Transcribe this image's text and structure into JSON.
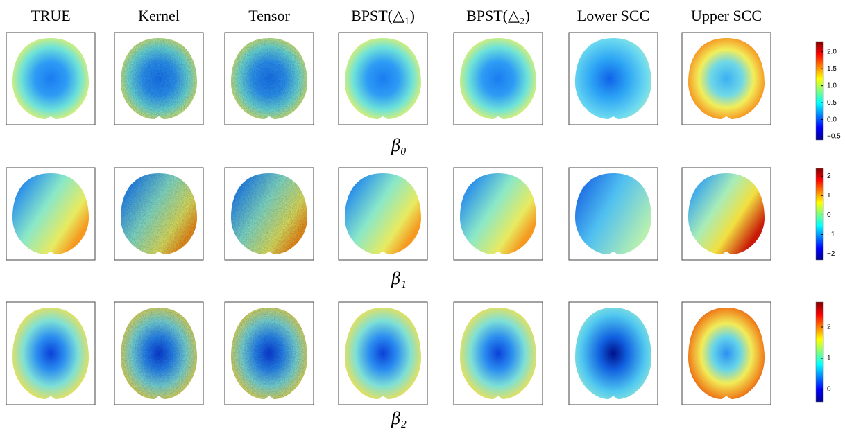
{
  "columns": [
    "TRUE",
    "Kernel",
    "Tensor",
    "BPST(△₁)",
    "BPST(△₂)",
    "Lower SCC",
    "Upper SCC"
  ],
  "rows": [
    {
      "label": "β₀",
      "colorbar": {
        "min": -0.6,
        "max": 2.3,
        "ticks": [
          {
            "value": 2,
            "label": "2.0"
          },
          {
            "value": 1.5,
            "label": "1.5"
          },
          {
            "value": 1,
            "label": "1.0"
          },
          {
            "value": 0.5,
            "label": "0.5"
          },
          {
            "value": 0,
            "label": "0.0"
          },
          {
            "value": -0.5,
            "label": "−0.5"
          }
        ]
      }
    },
    {
      "label": "β₁",
      "colorbar": {
        "min": -2.3,
        "max": 2.4,
        "ticks": [
          {
            "value": 2,
            "label": "2"
          },
          {
            "value": 1,
            "label": "1"
          },
          {
            "value": 0,
            "label": "0"
          },
          {
            "value": -1,
            "label": "−1"
          },
          {
            "value": -2,
            "label": "−2"
          }
        ]
      }
    },
    {
      "label": "β₂",
      "colorbar": {
        "min": -0.4,
        "max": 2.8,
        "ticks": [
          {
            "value": 2,
            "label": "2"
          },
          {
            "value": 1,
            "label": "1"
          },
          {
            "value": 0,
            "label": "0"
          }
        ]
      }
    }
  ]
}
